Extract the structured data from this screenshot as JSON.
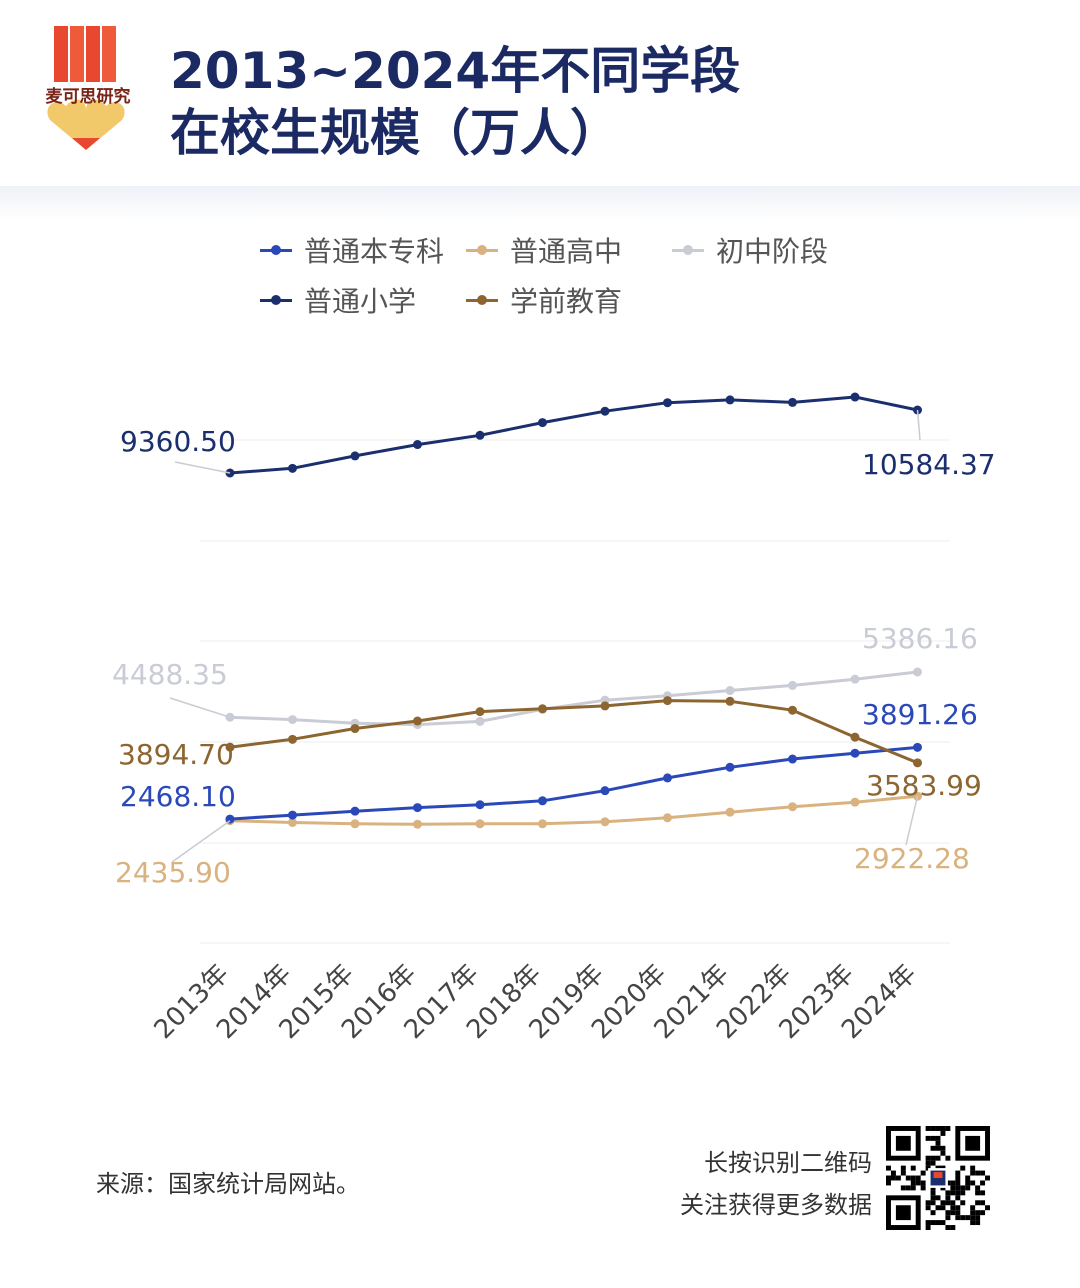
{
  "brand": {
    "logo_text": "麦可思研究"
  },
  "title": {
    "line1": "2013~2024年不同学段",
    "line2": "在校生规模（万人）"
  },
  "footer": {
    "source": "来源：国家统计局网站。",
    "qr_line1": "长按识别二维码",
    "qr_line2": "关注获得更多数据"
  },
  "icons": {
    "logo": "maike-logo",
    "qr": "qr-code-icon"
  },
  "chart_data": {
    "type": "line",
    "categories": [
      "2013年",
      "2014年",
      "2015年",
      "2016年",
      "2017年",
      "2018年",
      "2019年",
      "2020年",
      "2021年",
      "2022年",
      "2023年",
      "2024年"
    ],
    "grid": true,
    "legend_position": "top",
    "series": [
      {
        "name": "普通本专科",
        "color": "#2a48b8",
        "values": [
          2468.1,
          2547.7,
          2625.3,
          2695.84,
          2753.59,
          2831.03,
          3031.53,
          3285.29,
          3496.13,
          3659.44,
          3775.0,
          3891.26
        ],
        "label_first": "2468.10",
        "label_last": "3891.26"
      },
      {
        "name": "普通高中",
        "color": "#d9b27f",
        "values": [
          2435.9,
          2400.47,
          2374.4,
          2366.65,
          2374.55,
          2375.37,
          2414.31,
          2494.45,
          2605.03,
          2713.87,
          2803.63,
          2922.28
        ],
        "label_first": "2435.90",
        "label_last": "2922.28"
      },
      {
        "name": "初中阶段",
        "color": "#c9ccd4",
        "values": [
          4488.35,
          4442.4,
          4370.2,
          4342.3,
          4406.1,
          4644.4,
          4827.1,
          4914.1,
          5018.4,
          5120.6,
          5243.7,
          5386.16
        ],
        "label_first": "4488.35",
        "label_last": "5386.16"
      },
      {
        "name": "普通小学",
        "color": "#1b2f6e",
        "values": [
          9360.5,
          9451.1,
          9692.2,
          9913.0,
          10093.7,
          10339.3,
          10561.2,
          10725.4,
          10779.9,
          10732.0,
          10836.0,
          10584.37
        ],
        "label_first": "9360.50",
        "label_last": "10584.37"
      },
      {
        "name": "学前教育",
        "color": "#8c6530",
        "values": [
          3894.7,
          4050.7,
          4264.8,
          4413.9,
          4600.1,
          4656.4,
          4713.9,
          4818.3,
          4805.2,
          4627.5,
          4093.0,
          3583.99
        ],
        "label_first": "3894.70",
        "label_last": "3583.99"
      }
    ]
  }
}
